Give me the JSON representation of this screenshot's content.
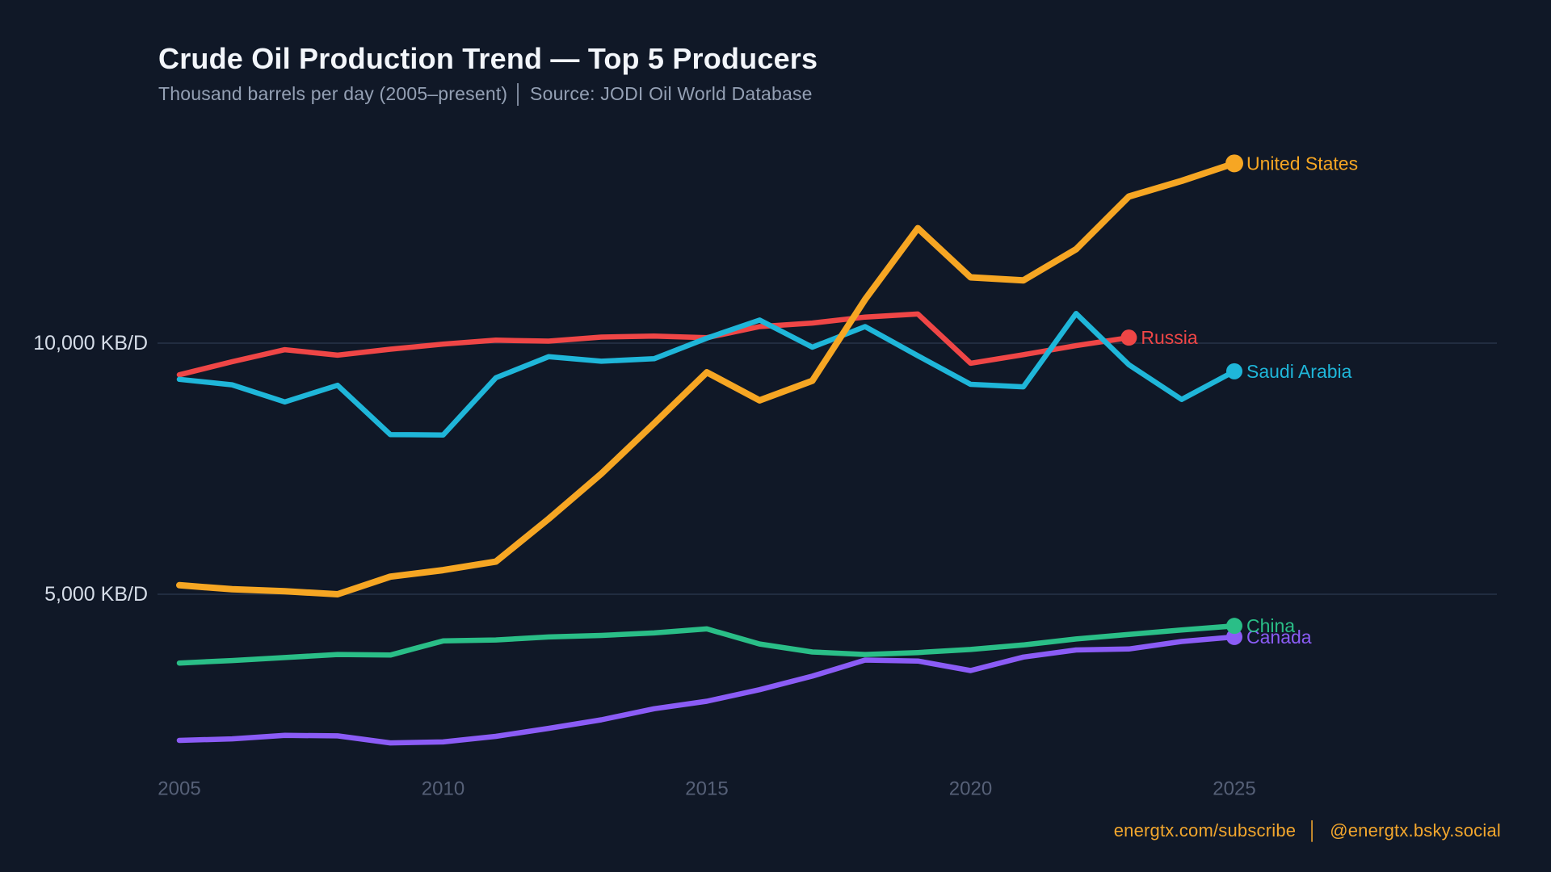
{
  "header": {
    "title": "Crude Oil Production Trend — Top 5 Producers",
    "subtitle": "Thousand barrels per day (2005–present)  │  Source: JODI Oil World Database"
  },
  "footer": {
    "site": "energtx.com/subscribe",
    "separator": "│",
    "social": "@energtx.bsky.social"
  },
  "colors": {
    "background": "#101827",
    "title_text": "#f3f6fb",
    "subtitle_text": "#94a0b4",
    "gridline": "#273349",
    "y_axis_label": "#d6dde8",
    "x_axis_label": "#566077",
    "footer_text": "#f2a62d"
  },
  "chart_data": {
    "type": "line",
    "title": "Crude Oil Production Trend — Top 5 Producers",
    "subtitle": "Thousand barrels per day (2005–present) | Source: JODI Oil World Database",
    "unit": "KB/D",
    "x_range": [
      2005,
      2025
    ],
    "x_ticks": [
      2005,
      2010,
      2015,
      2020,
      2025
    ],
    "grid": "horizontal-only",
    "legend_position": "line-end-labels",
    "gridlines": [
      {
        "value": 10000,
        "label": "10,000 KB/D"
      },
      {
        "value": 5000,
        "label": "5,000 KB/D"
      }
    ],
    "series": [
      {
        "name": "United States",
        "key": "united-states",
        "color": "#f6a623",
        "start_year": 2005,
        "values": [
          5180,
          5100,
          5060,
          5000,
          5350,
          5480,
          5650,
          6500,
          7400,
          8400,
          9420,
          8860,
          9250,
          10870,
          12290,
          11310,
          11250,
          11870,
          12920,
          13230,
          13580
        ]
      },
      {
        "name": "Saudi Arabia",
        "key": "saudi-arabia",
        "color": "#1fb6d9",
        "start_year": 2005,
        "values": [
          9280,
          9170,
          8830,
          9160,
          8180,
          8170,
          9310,
          9730,
          9640,
          9690,
          10100,
          10460,
          9920,
          10330,
          9750,
          9180,
          9130,
          10590,
          9570,
          8880,
          9440
        ]
      },
      {
        "name": "Russia",
        "key": "russia",
        "color": "#ef4646",
        "start_year": 2005,
        "values": [
          9370,
          9630,
          9870,
          9760,
          9880,
          9980,
          10060,
          10040,
          10120,
          10140,
          10110,
          10330,
          10400,
          10520,
          10580,
          9600,
          9770,
          9950,
          10110
        ]
      },
      {
        "name": "China",
        "key": "china",
        "color": "#2abe87",
        "start_year": 2005,
        "values": [
          3630,
          3680,
          3740,
          3800,
          3790,
          4070,
          4090,
          4150,
          4180,
          4230,
          4310,
          4010,
          3850,
          3800,
          3840,
          3900,
          3990,
          4110,
          4200,
          4290,
          4370
        ]
      },
      {
        "name": "Canada",
        "key": "canada",
        "color": "#8b5cf6",
        "start_year": 2005,
        "values": [
          2090,
          2120,
          2190,
          2180,
          2040,
          2060,
          2170,
          2330,
          2500,
          2720,
          2870,
          3100,
          3370,
          3690,
          3670,
          3480,
          3750,
          3890,
          3910,
          4060,
          4150
        ]
      }
    ]
  },
  "geometry_note": ""
}
